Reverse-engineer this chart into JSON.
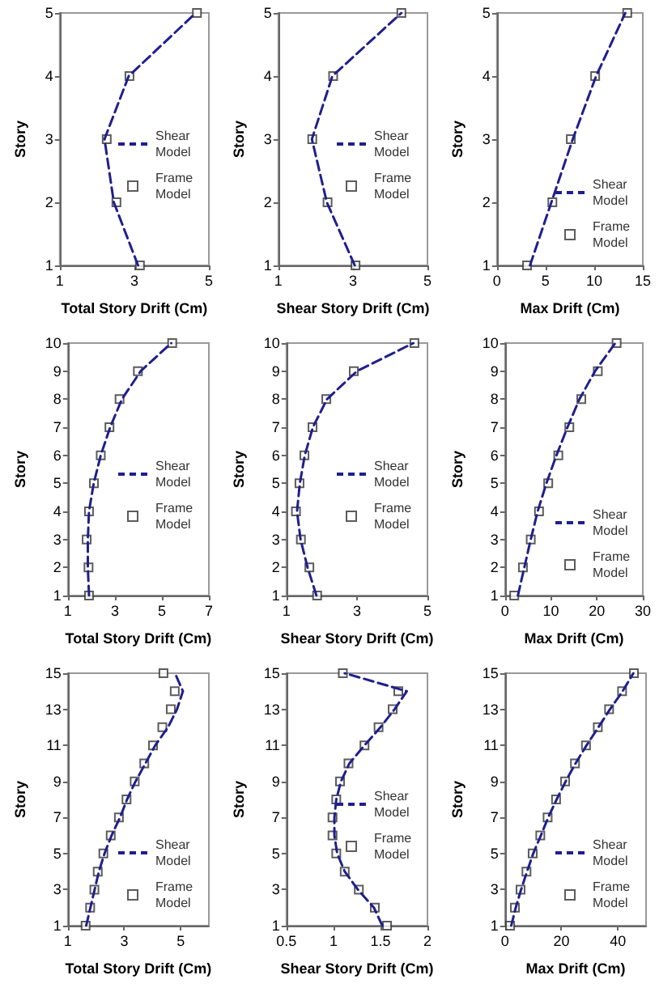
{
  "chart_data": [
    {
      "type": "line",
      "xlabel": "Total Story Drift (Cm)",
      "ylabel": "Story",
      "xlim": [
        1,
        5
      ],
      "xticks": [
        1,
        3,
        5
      ],
      "ylim": [
        1,
        5
      ],
      "yticks": [
        1,
        2,
        3,
        4,
        5
      ],
      "grid": false,
      "legend": "right",
      "series": [
        {
          "name": "Shear Model",
          "type": "line",
          "color": "#1f1f8f",
          "line_style": "dashed",
          "marker": "none",
          "x": [
            3.1,
            2.45,
            2.2,
            2.85,
            4.65
          ],
          "values": [
            1,
            2,
            3,
            4,
            5
          ]
        },
        {
          "name": "Frame Model",
          "type": "scatter",
          "color": "#333333",
          "marker": "square",
          "x": [
            3.15,
            2.52,
            2.26,
            2.87,
            4.68
          ],
          "values": [
            1,
            2,
            3,
            4,
            5
          ]
        }
      ]
    },
    {
      "type": "line",
      "xlabel": "Shear Story Drift (Cm)",
      "ylabel": "Story",
      "xlim": [
        1,
        5
      ],
      "xticks": [
        1,
        3,
        5
      ],
      "ylim": [
        1,
        5
      ],
      "yticks": [
        1,
        2,
        3,
        4,
        5
      ],
      "grid": false,
      "legend": "right",
      "series": [
        {
          "name": "Shear Model",
          "type": "line",
          "color": "#1f1f8f",
          "line_style": "dashed",
          "marker": "none",
          "x": [
            3.05,
            2.3,
            1.9,
            2.45,
            4.3
          ],
          "values": [
            1,
            2,
            3,
            4,
            5
          ]
        },
        {
          "name": "Frame Model",
          "type": "scatter",
          "color": "#333333",
          "marker": "square",
          "x": [
            3.07,
            2.32,
            1.91,
            2.47,
            4.3
          ],
          "values": [
            1,
            2,
            3,
            4,
            5
          ]
        }
      ]
    },
    {
      "type": "line",
      "xlabel": "Max Drift (Cm)",
      "ylabel": "Story",
      "xlim": [
        0,
        15
      ],
      "xticks": [
        0,
        5,
        10,
        15
      ],
      "ylim": [
        1,
        5
      ],
      "yticks": [
        1,
        2,
        3,
        4,
        5
      ],
      "grid": false,
      "legend": "bottom right",
      "series": [
        {
          "name": "Shear Model",
          "type": "line",
          "color": "#1f1f8f",
          "line_style": "dashed",
          "marker": "none",
          "x": [
            3.4,
            5.6,
            7.8,
            10.2,
            13.2
          ],
          "values": [
            1,
            2,
            3,
            4,
            5
          ]
        },
        {
          "name": "Frame Model",
          "type": "scatter",
          "color": "#333333",
          "marker": "square",
          "x": [
            3.1,
            5.7,
            7.6,
            10.1,
            13.4
          ],
          "values": [
            1,
            2,
            3,
            4,
            5
          ]
        }
      ]
    },
    {
      "type": "line",
      "xlabel": "Total Story Drift (Cm)",
      "ylabel": "Story",
      "xlim": [
        1,
        7
      ],
      "xticks": [
        1,
        3,
        5,
        7
      ],
      "ylim": [
        1,
        10
      ],
      "yticks": [
        1,
        2,
        3,
        4,
        5,
        6,
        7,
        8,
        9,
        10
      ],
      "grid": false,
      "legend": "right",
      "series": [
        {
          "name": "Shear Model",
          "type": "line",
          "color": "#1f1f8f",
          "line_style": "dashed",
          "marker": "none",
          "x": [
            1.9,
            1.85,
            1.85,
            1.9,
            2.1,
            2.4,
            2.8,
            3.3,
            4.1,
            5.4
          ],
          "values": [
            1,
            2,
            3,
            4,
            5,
            6,
            7,
            8,
            9,
            10
          ]
        },
        {
          "name": "Frame Model",
          "type": "scatter",
          "color": "#333333",
          "marker": "square",
          "x": [
            1.9,
            1.88,
            1.8,
            1.9,
            2.11,
            2.4,
            2.77,
            3.2,
            3.98,
            5.44
          ],
          "values": [
            1,
            2,
            3,
            4,
            5,
            6,
            7,
            8,
            9,
            10
          ]
        }
      ]
    },
    {
      "type": "line",
      "xlabel": "Shear Story Drift (Cm)",
      "ylabel": "Story",
      "xlim": [
        1,
        5
      ],
      "xticks": [
        1,
        3,
        5
      ],
      "ylim": [
        1,
        10
      ],
      "yticks": [
        1,
        2,
        3,
        4,
        5,
        6,
        7,
        8,
        9,
        10
      ],
      "grid": false,
      "legend": "right",
      "series": [
        {
          "name": "Shear Model",
          "type": "line",
          "color": "#1f1f8f",
          "line_style": "dashed",
          "marker": "none",
          "x": [
            1.85,
            1.6,
            1.4,
            1.3,
            1.38,
            1.52,
            1.75,
            2.15,
            3.0,
            4.6
          ],
          "values": [
            1,
            2,
            3,
            4,
            5,
            6,
            7,
            8,
            9,
            10
          ]
        },
        {
          "name": "Frame Model",
          "type": "scatter",
          "color": "#333333",
          "marker": "square",
          "x": [
            1.87,
            1.65,
            1.41,
            1.27,
            1.37,
            1.51,
            1.74,
            2.13,
            2.91,
            4.63
          ],
          "values": [
            1,
            2,
            3,
            4,
            5,
            6,
            7,
            8,
            9,
            10
          ]
        }
      ]
    },
    {
      "type": "line",
      "xlabel": "Max Drift (Cm)",
      "ylabel": "Story",
      "xlim": [
        0,
        30
      ],
      "xticks": [
        0,
        10,
        20,
        30
      ],
      "ylim": [
        1,
        10
      ],
      "yticks": [
        1,
        2,
        3,
        4,
        5,
        6,
        7,
        8,
        9,
        10
      ],
      "grid": false,
      "legend": "bottom right",
      "series": [
        {
          "name": "Shear Model",
          "type": "line",
          "color": "#1f1f8f",
          "line_style": "dashed",
          "marker": "none",
          "x": [
            2.8,
            4.2,
            5.6,
            7.1,
            9.0,
            11.2,
            13.6,
            16.2,
            19.6,
            24.0
          ],
          "values": [
            1,
            2,
            3,
            4,
            5,
            6,
            7,
            8,
            9,
            10
          ]
        },
        {
          "name": "Frame Model",
          "type": "scatter",
          "color": "#333333",
          "marker": "square",
          "x": [
            2.0,
            3.9,
            5.6,
            7.4,
            9.4,
            11.6,
            14.0,
            16.6,
            20.2,
            24.3
          ],
          "values": [
            1,
            2,
            3,
            4,
            5,
            6,
            7,
            8,
            9,
            10
          ]
        }
      ]
    },
    {
      "type": "line",
      "xlabel": "Total Story Drift (Cm)",
      "ylabel": "Story",
      "xlim": [
        1,
        6
      ],
      "xticks": [
        1,
        3,
        5
      ],
      "ylim": [
        1,
        15
      ],
      "yticks": [
        1,
        3,
        5,
        7,
        9,
        11,
        13,
        15
      ],
      "grid": false,
      "legend": "bottom right",
      "series": [
        {
          "name": "Shear Model",
          "type": "line",
          "color": "#1f1f8f",
          "line_style": "dashed",
          "marker": "none",
          "x": [
            1.65,
            1.8,
            1.95,
            2.1,
            2.3,
            2.55,
            2.85,
            3.1,
            3.4,
            3.75,
            4.1,
            4.55,
            4.87,
            5.08,
            4.8
          ],
          "values": [
            1,
            2,
            3,
            4,
            5,
            6,
            7,
            8,
            9,
            10,
            11,
            12,
            13,
            14,
            15
          ]
        },
        {
          "name": "Frame Model",
          "type": "scatter",
          "color": "#333333",
          "marker": "square",
          "x": [
            1.63,
            1.79,
            1.94,
            2.06,
            2.26,
            2.52,
            2.81,
            3.08,
            3.37,
            3.71,
            4.02,
            4.35,
            4.65,
            4.79,
            4.39
          ],
          "values": [
            1,
            2,
            3,
            4,
            5,
            6,
            7,
            8,
            9,
            10,
            11,
            12,
            13,
            14,
            15
          ]
        }
      ]
    },
    {
      "type": "line",
      "xlabel": "Shear Story Drift (Cm)",
      "ylabel": "Story",
      "xlim": [
        0.5,
        2
      ],
      "xticks": [
        0.5,
        1,
        1.5,
        2
      ],
      "ylim": [
        1,
        15
      ],
      "yticks": [
        1,
        3,
        5,
        7,
        9,
        11,
        13,
        15
      ],
      "grid": false,
      "legend": "right",
      "series": [
        {
          "name": "Shear Model",
          "type": "line",
          "color": "#1f1f8f",
          "line_style": "dashed",
          "marker": "none",
          "x": [
            1.52,
            1.43,
            1.26,
            1.12,
            1.04,
            1.01,
            1.01,
            1.03,
            1.08,
            1.17,
            1.33,
            1.5,
            1.65,
            1.78,
            1.12
          ],
          "values": [
            1,
            2,
            3,
            4,
            5,
            6,
            7,
            8,
            9,
            10,
            11,
            12,
            13,
            14,
            15
          ]
        },
        {
          "name": "Frame Model",
          "type": "scatter",
          "color": "#333333",
          "marker": "square",
          "x": [
            1.57,
            1.44,
            1.27,
            1.12,
            1.03,
            0.99,
            0.99,
            1.03,
            1.07,
            1.16,
            1.33,
            1.48,
            1.63,
            1.69,
            1.1
          ],
          "values": [
            1,
            2,
            3,
            4,
            5,
            6,
            7,
            8,
            9,
            10,
            11,
            12,
            13,
            14,
            15
          ]
        }
      ]
    },
    {
      "type": "line",
      "xlabel": "Max Drift (Cm)",
      "ylabel": "Story",
      "xlim": [
        0,
        50
      ],
      "xticks": [
        0,
        20,
        40
      ],
      "ylim": [
        1,
        15
      ],
      "yticks": [
        1,
        3,
        5,
        7,
        9,
        11,
        13,
        15
      ],
      "grid": false,
      "legend": "bottom right",
      "series": [
        {
          "name": "Shear Model",
          "type": "line",
          "color": "#1f1f8f",
          "line_style": "dashed",
          "marker": "none",
          "x": [
            2.2,
            3.8,
            5.7,
            7.8,
            10.0,
            12.7,
            15.3,
            18.3,
            21.5,
            25.0,
            28.9,
            33.1,
            37.2,
            41.7,
            45.5
          ],
          "values": [
            1,
            2,
            3,
            4,
            5,
            6,
            7,
            8,
            9,
            10,
            11,
            12,
            13,
            14,
            15
          ]
        },
        {
          "name": "Frame Model",
          "type": "scatter",
          "color": "#333333",
          "marker": "square",
          "x": [
            1.8,
            3.5,
            5.5,
            7.6,
            9.8,
            12.5,
            15.1,
            18.1,
            21.3,
            24.8,
            28.7,
            32.9,
            36.9,
            41.5,
            45.7
          ],
          "values": [
            1,
            2,
            3,
            4,
            5,
            6,
            7,
            8,
            9,
            10,
            11,
            12,
            13,
            14,
            15
          ]
        }
      ]
    }
  ]
}
